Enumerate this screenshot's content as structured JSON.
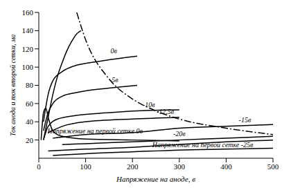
{
  "chart_data": {
    "type": "line",
    "x_label": "Напряжение на аноде, в",
    "y_label": "Ток анода и ток второй сетки, ма",
    "xlim": [
      0,
      500
    ],
    "xticks": [
      0,
      100,
      200,
      300,
      400,
      500
    ],
    "ylim": [
      0,
      160
    ],
    "yticks": [
      20,
      40,
      60,
      80,
      100,
      120,
      140,
      160
    ],
    "grid": false,
    "series": [
      {
        "color": "#000000",
        "line_style": "solid",
        "x": [
          10,
          20,
          30,
          40,
          50,
          60,
          70,
          80,
          90
        ],
        "values": [
          20,
          45,
          70,
          90,
          105,
          118,
          128,
          136,
          140
        ]
      },
      {
        "name": "0в",
        "color": "#000000",
        "line_style": "solid",
        "x": [
          10,
          20,
          30,
          50,
          80,
          100,
          150,
          210
        ],
        "values": [
          40,
          70,
          85,
          95,
          102,
          104,
          108,
          112
        ]
      },
      {
        "name": "-5в",
        "color": "#000000",
        "line_style": "solid",
        "x": [
          10,
          20,
          30,
          50,
          80,
          100,
          150,
          210
        ],
        "values": [
          30,
          50,
          60,
          68,
          72,
          74,
          77,
          80
        ]
      },
      {
        "name": "-10в",
        "color": "#000000",
        "line_style": "solid",
        "x": [
          10,
          20,
          40,
          80,
          150,
          210,
          300
        ],
        "values": [
          20,
          35,
          43,
          47,
          50,
          52,
          53
        ]
      },
      {
        "name": "-12,5в",
        "color": "#000000",
        "line_style": "solid",
        "x": [
          20,
          50,
          100,
          200,
          300
        ],
        "values": [
          28,
          35,
          40,
          43,
          45
        ]
      },
      {
        "name": "-15в",
        "color": "#000000",
        "line_style": "solid",
        "x": [
          30,
          100,
          200,
          300,
          400,
          500
        ],
        "values": [
          22,
          26,
          28,
          33,
          35,
          37
        ]
      },
      {
        "name": "-20в",
        "color": "#000000",
        "line_style": "solid",
        "x": [
          50,
          100,
          200,
          300,
          400,
          500
        ],
        "values": [
          15,
          16,
          18,
          20,
          22,
          24
        ]
      },
      {
        "color": "#000000",
        "line_style": "solid",
        "x": [
          5,
          10,
          15,
          20,
          30,
          50,
          100,
          200,
          300
        ],
        "values": [
          20,
          50,
          55,
          45,
          30,
          24,
          21,
          20,
          19
        ]
      },
      {
        "color": "#000000",
        "line_style": "solid",
        "x": [
          20,
          100,
          200,
          300,
          400,
          500
        ],
        "values": [
          8,
          10,
          12,
          15,
          18,
          20
        ]
      },
      {
        "color": "#000000",
        "line_style": "solid",
        "x": [
          30,
          100,
          200,
          300,
          400,
          500
        ],
        "values": [
          3,
          5,
          7,
          9,
          10,
          11
        ]
      },
      {
        "color": "#000000",
        "line_style": "dashdot",
        "x": [
          81,
          100,
          150,
          200,
          250,
          300,
          400,
          500
        ],
        "values": [
          160,
          130,
          87,
          65,
          52,
          43,
          33,
          26
        ]
      }
    ],
    "annotations": [
      {
        "text": "0в",
        "x": 160,
        "y": 118
      },
      {
        "text": "-5в",
        "x": 160,
        "y": 86
      },
      {
        "text": "-10в",
        "x": 235,
        "y": 59
      },
      {
        "text": "-12,5в",
        "x": 270,
        "y": 51
      },
      {
        "text": "-15в",
        "x": 440,
        "y": 42
      },
      {
        "text": "-20в",
        "x": 300,
        "y": 27
      },
      {
        "text": "Напряжение на первой сетке 0в",
        "x": 120,
        "y": 30
      },
      {
        "text": "Напряжение на первой сетке -25в",
        "x": 350,
        "y": 15
      }
    ]
  }
}
